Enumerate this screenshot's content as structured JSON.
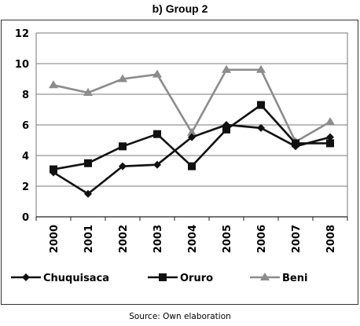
{
  "chart_data": {
    "type": "line",
    "title": "b) Group 2",
    "xlabel": "",
    "ylabel": "",
    "x": [
      "2000",
      "2001",
      "2002",
      "2003",
      "2004",
      "2005",
      "2006",
      "2007",
      "2008"
    ],
    "ylim": [
      0,
      12
    ],
    "yticks": [
      "0",
      "2",
      "4",
      "6",
      "8",
      "10",
      "12"
    ],
    "grid": "horizontal",
    "legend": "bottom",
    "series": [
      {
        "name": "Chuquisaca",
        "values": [
          2.9,
          1.5,
          3.3,
          3.4,
          5.2,
          6.0,
          5.8,
          4.6,
          5.2
        ],
        "color": "#111111",
        "marker": "diamond"
      },
      {
        "name": "Oruro",
        "values": [
          3.1,
          3.5,
          4.6,
          5.4,
          3.3,
          5.7,
          7.3,
          4.8,
          4.8
        ],
        "color": "#111111",
        "marker": "square"
      },
      {
        "name": "Beni",
        "values": [
          8.6,
          8.1,
          9.0,
          9.3,
          5.5,
          9.6,
          9.6,
          4.9,
          6.2
        ],
        "color": "#8c8c8c",
        "marker": "triangle"
      }
    ]
  },
  "source": "Source: Own elaboration"
}
